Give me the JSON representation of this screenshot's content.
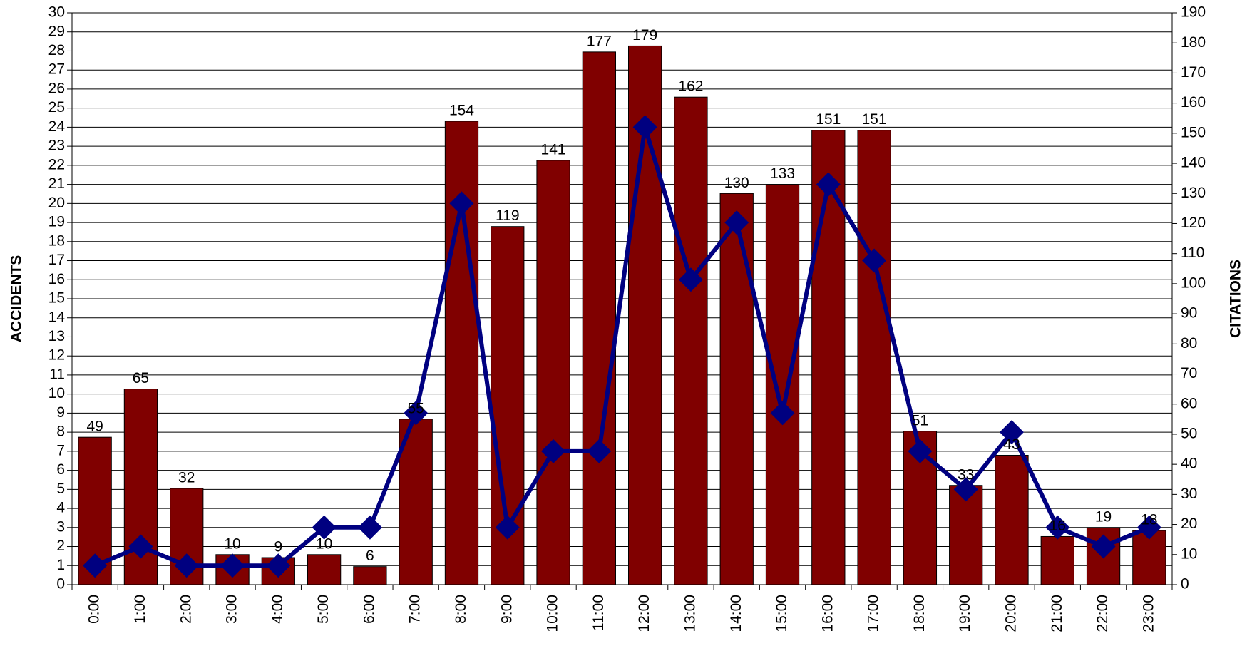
{
  "chart_data": {
    "type": "bar",
    "categories": [
      "0:00",
      "1:00",
      "2:00",
      "3:00",
      "4:00",
      "5:00",
      "6:00",
      "7:00",
      "8:00",
      "9:00",
      "10:00",
      "11:00",
      "12:00",
      "13:00",
      "14:00",
      "15:00",
      "16:00",
      "17:00",
      "18:00",
      "19:00",
      "20:00",
      "21:00",
      "22:00",
      "23:00"
    ],
    "series": [
      {
        "type": "bar",
        "axis": "y2",
        "color": "#800000",
        "values": [
          49,
          65,
          32,
          10,
          9,
          10,
          6,
          55,
          154,
          119,
          141,
          177,
          179,
          162,
          130,
          133,
          151,
          151,
          51,
          33,
          43,
          16,
          19,
          18
        ]
      },
      {
        "type": "line",
        "axis": "y",
        "color": "#000080",
        "values": [
          1,
          2,
          1,
          1,
          1,
          3,
          3,
          9,
          20,
          3,
          7,
          7,
          24,
          16,
          19,
          9,
          21,
          17,
          7,
          5,
          8,
          3,
          2,
          3
        ]
      }
    ],
    "y_label": "ACCIDENTS",
    "y2_label": "CITATIONS",
    "ylim": [
      0,
      30
    ],
    "yticks": [
      0,
      1,
      2,
      3,
      4,
      5,
      6,
      7,
      8,
      9,
      10,
      11,
      12,
      13,
      14,
      15,
      16,
      17,
      18,
      19,
      20,
      21,
      22,
      23,
      24,
      25,
      26,
      27,
      28,
      29,
      30
    ],
    "y2lim": [
      0,
      190
    ],
    "y2ticks": [
      0,
      10,
      20,
      30,
      40,
      50,
      60,
      70,
      80,
      90,
      100,
      110,
      120,
      130,
      140,
      150,
      160,
      170,
      180,
      190
    ],
    "grid": true
  }
}
